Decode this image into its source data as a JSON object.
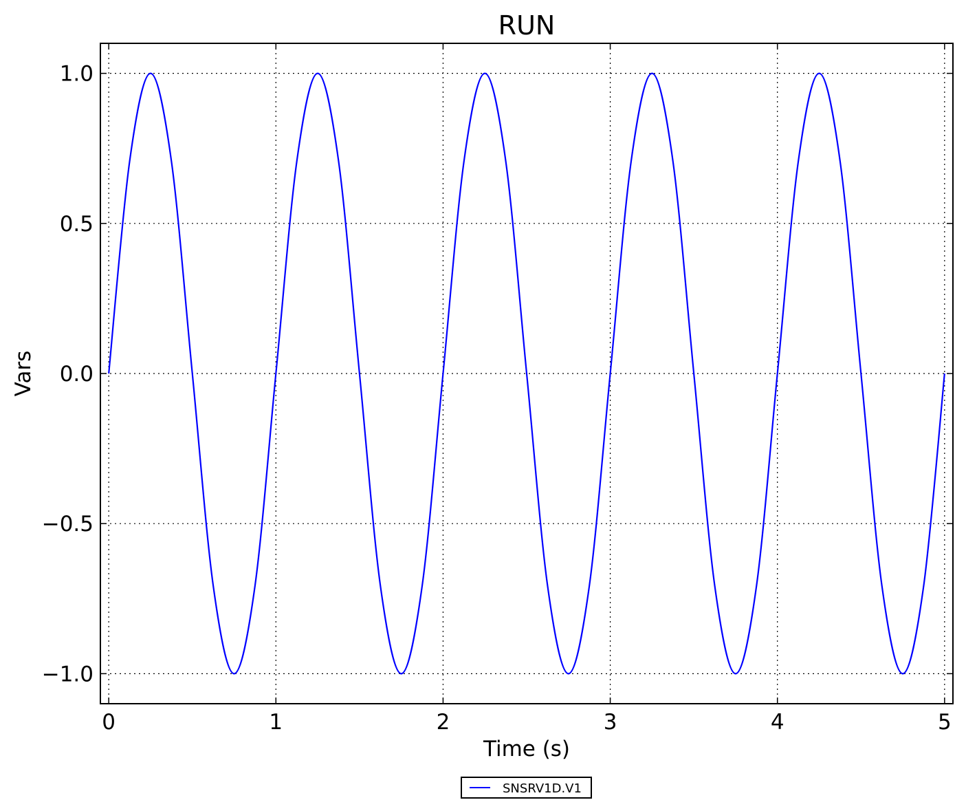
{
  "chart_data": {
    "type": "line",
    "title": "RUN",
    "xlabel": "Time (s)",
    "ylabel": "Vars",
    "xlim": [
      -0.05,
      5.05
    ],
    "ylim": [
      -1.1,
      1.1
    ],
    "xticks": [
      0,
      1,
      2,
      3,
      4,
      5
    ],
    "xtick_labels": [
      "0",
      "1",
      "2",
      "3",
      "4",
      "5"
    ],
    "yticks": [
      -1.0,
      -0.5,
      0.0,
      0.5,
      1.0
    ],
    "ytick_labels": [
      "−1.0",
      "−0.5",
      "0.0",
      "0.5",
      "1.0"
    ],
    "grid": true,
    "legend_position": "bottom-center-outside",
    "series": [
      {
        "name": "SNSRV1D.V1",
        "color": "#0000ff",
        "x": [
          0,
          0.125,
          0.25,
          0.375,
          0.5,
          0.625,
          0.75,
          0.875,
          1.0,
          1.125,
          1.25,
          1.375,
          1.5,
          1.625,
          1.75,
          1.875,
          2.0,
          2.125,
          2.25,
          2.375,
          2.5,
          2.625,
          2.75,
          2.875,
          3.0,
          3.125,
          3.25,
          3.375,
          3.5,
          3.625,
          3.75,
          3.875,
          4.0,
          4.125,
          4.25,
          4.375,
          4.5,
          4.625,
          4.75,
          4.875,
          5.0
        ],
        "values": [
          0,
          0.707,
          1.0,
          0.707,
          0,
          -0.707,
          -1.0,
          -0.707,
          0,
          0.707,
          1.0,
          0.707,
          0,
          -0.707,
          -1.0,
          -0.707,
          0,
          0.707,
          1.0,
          0.707,
          0,
          -0.707,
          -1.0,
          -0.707,
          0,
          0.707,
          1.0,
          0.707,
          0,
          -0.707,
          -1.0,
          -0.707,
          0,
          0.707,
          1.0,
          0.707,
          0,
          -0.707,
          -1.0,
          -0.707,
          0
        ]
      }
    ]
  }
}
